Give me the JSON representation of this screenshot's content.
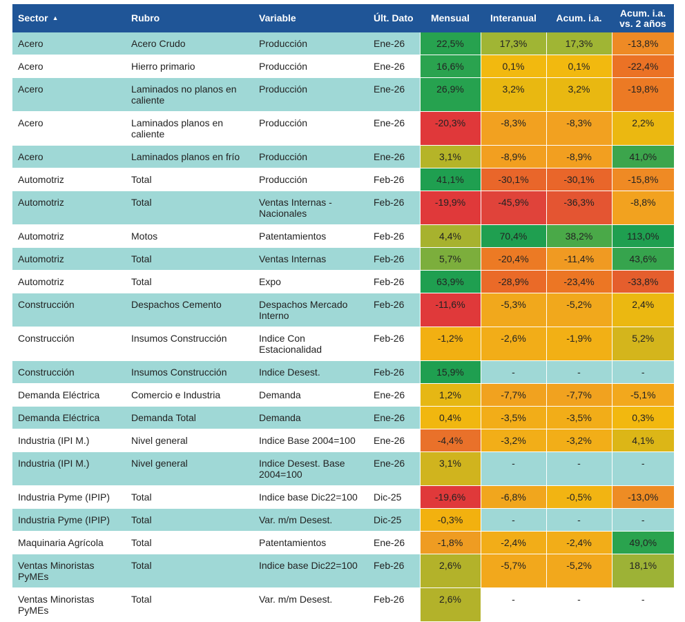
{
  "table": {
    "header_color": "#1f5597",
    "stripe_color": "#9fd8d6",
    "headers": [
      "Sector",
      "Rubro",
      "Variable",
      "Últ. Dato",
      "Mensual",
      "Interanual",
      "Acum. i.a.",
      "Acum. i.a. vs. 2 años"
    ],
    "rows": [
      [
        "Acero",
        "Acero Crudo",
        "Producción",
        "Ene-26",
        "22,5%",
        "17,3%",
        "17,3%",
        "-13,8%"
      ],
      [
        "Acero",
        "Hierro primario",
        "Producción",
        "Ene-26",
        "16,6%",
        "0,1%",
        "0,1%",
        "-22,4%"
      ],
      [
        "Acero",
        "Laminados no planos en caliente",
        "Producción",
        "Ene-26",
        "26,9%",
        "3,2%",
        "3,2%",
        "-19,8%"
      ],
      [
        "Acero",
        "Laminados planos en caliente",
        "Producción",
        "Ene-26",
        "-20,3%",
        "-8,3%",
        "-8,3%",
        "2,2%"
      ],
      [
        "Acero",
        "Laminados planos en frío",
        "Producción",
        "Ene-26",
        "3,1%",
        "-8,9%",
        "-8,9%",
        "41,0%"
      ],
      [
        "Automotriz",
        "Total",
        "Producción",
        "Feb-26",
        "41,1%",
        "-30,1%",
        "-30,1%",
        "-15,8%"
      ],
      [
        "Automotriz",
        "Total",
        "Ventas Internas - Nacionales",
        "Feb-26",
        "-19,9%",
        "-45,9%",
        "-36,3%",
        "-8,8%"
      ],
      [
        "Automotriz",
        "Motos",
        "Patentamientos",
        "Feb-26",
        "4,4%",
        "70,4%",
        "38,2%",
        "113,0%"
      ],
      [
        "Automotriz",
        "Total",
        "Ventas Internas",
        "Feb-26",
        "5,7%",
        "-20,4%",
        "-11,4%",
        "43,6%"
      ],
      [
        "Automotriz",
        "Total",
        "Expo",
        "Feb-26",
        "63,9%",
        "-28,9%",
        "-23,4%",
        "-33,8%"
      ],
      [
        "Construcción",
        "Despachos Cemento",
        "Despachos Mercado Interno",
        "Feb-26",
        "-11,6%",
        "-5,3%",
        "-5,2%",
        "2,4%"
      ],
      [
        "Construcción",
        "Insumos Construcción",
        "Indice Con Estacionalidad",
        "Feb-26",
        "-1,2%",
        "-2,6%",
        "-1,9%",
        "5,2%"
      ],
      [
        "Construcción",
        "Insumos Construcción",
        "Indice Desest.",
        "Feb-26",
        "15,9%",
        "-",
        "-",
        "-"
      ],
      [
        "Demanda Eléctrica",
        "Comercio e Industria",
        "Demanda",
        "Ene-26",
        "1,2%",
        "-7,7%",
        "-7,7%",
        "-5,1%"
      ],
      [
        "Demanda Eléctrica",
        "Demanda Total",
        "Demanda",
        "Ene-26",
        "0,4%",
        "-3,5%",
        "-3,5%",
        "0,3%"
      ],
      [
        "Industria (IPI M.)",
        "Nivel general",
        "Indice Base 2004=100",
        "Ene-26",
        "-4,4%",
        "-3,2%",
        "-3,2%",
        "4,1%"
      ],
      [
        "Industria (IPI M.)",
        "Nivel general",
        "Indice Desest. Base 2004=100",
        "Ene-26",
        "3,1%",
        "-",
        "-",
        "-"
      ],
      [
        "Industria Pyme (IPIP)",
        "Total",
        "Indice base Dic22=100",
        "Dic-25",
        "-19,6%",
        "-6,8%",
        "-0,5%",
        "-13,0%"
      ],
      [
        "Industria Pyme (IPIP)",
        "Total",
        "Var. m/m Desest.",
        "Dic-25",
        "-0,3%",
        "-",
        "-",
        "-"
      ],
      [
        "Maquinaria Agrícola",
        "Total",
        "Patentamientos",
        "Ene-26",
        "-1,8%",
        "-2,4%",
        "-2,4%",
        "49,0%"
      ],
      [
        "Ventas Minoristas PyMEs",
        "Total",
        "Indice base Dic22=100",
        "Feb-26",
        "2,6%",
        "-5,7%",
        "-5,2%",
        "18,1%"
      ],
      [
        "Ventas Minoristas PyMEs",
        "Total",
        "Var. m/m Desest.",
        "Feb-26",
        "2,6%",
        "-",
        "-",
        "-"
      ]
    ],
    "cell_colors": [
      [
        "#27a24f",
        "#a0b534",
        "#a0b534",
        "#ee8a25"
      ],
      [
        "#2aa34f",
        "#f2b90f",
        "#f2b90f",
        "#eb7225"
      ],
      [
        "#26a24f",
        "#e9b811",
        "#e9b811",
        "#ec7a24"
      ],
      [
        "#e0383a",
        "#f2a120",
        "#f2a120",
        "#ebb811"
      ],
      [
        "#b5b428",
        "#f29f20",
        "#f29f20",
        "#3ca54c"
      ],
      [
        "#1f9f50",
        "#e9662a",
        "#e9662a",
        "#ef8a24"
      ],
      [
        "#e0393a",
        "#e0433a",
        "#e45532",
        "#f2a21f"
      ],
      [
        "#a7b22e",
        "#1f9f50",
        "#4aa948",
        "#1f9f50"
      ],
      [
        "#7cae3c",
        "#ec7a24",
        "#f09a22",
        "#36a44d"
      ],
      [
        "#1f9f50",
        "#ea6a28",
        "#ec7624",
        "#e55e2d"
      ],
      [
        "#e0393a",
        "#f1a81c",
        "#f1a81c",
        "#ebb811"
      ],
      [
        "#f2b012",
        "#f2ad18",
        "#f2b015",
        "#d4b51c"
      ],
      [
        "#1f9f50",
        null,
        null,
        null
      ],
      [
        "#e6b714",
        "#f1a21f",
        "#f1a21f",
        "#f2a81d"
      ],
      [
        "#f1b70f",
        "#f2ad18",
        "#f2ad18",
        "#f2b80f"
      ],
      [
        "#e9712a",
        "#f2ae18",
        "#f2ae18",
        "#dcb617"
      ],
      [
        "#d0b41e",
        null,
        null,
        null
      ],
      [
        "#e0393a",
        "#f1a61d",
        "#f2b412",
        "#ee8c24"
      ],
      [
        "#f2b10f",
        null,
        null,
        null
      ],
      [
        "#ef9c22",
        "#f2ad18",
        "#f2ad18",
        "#2aa34e"
      ],
      [
        "#b3b22a",
        "#f2a81c",
        "#f2a81c",
        "#9db236"
      ],
      [
        "#b3b22a",
        null,
        null,
        null
      ]
    ]
  }
}
